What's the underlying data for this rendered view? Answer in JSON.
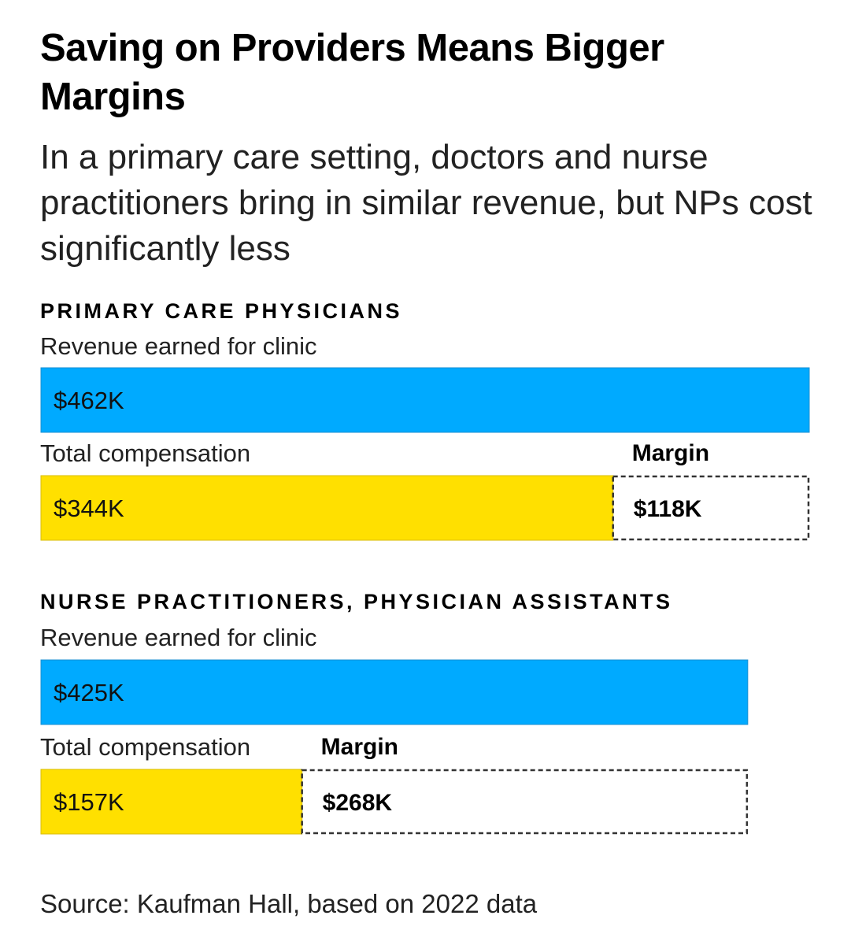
{
  "header": {
    "title": "Saving on Providers Means Bigger Margins",
    "subtitle": "In a primary care setting, doctors and nurse practitioners bring in similar revenue, but NPs cost significantly less"
  },
  "colors": {
    "revenue": "#00AAFF",
    "compensation": "#FFE000",
    "margin_border": "#333333"
  },
  "chart_data": {
    "type": "bar",
    "title": "Saving on Providers Means Bigger Margins",
    "subtitle": "In a primary care setting, doctors and nurse practitioners bring in similar revenue, but NPs cost significantly less",
    "units": "$K",
    "groups": [
      {
        "heading": "PRIMARY CARE PHYSICIANS",
        "revenue_label": "Revenue earned for clinic",
        "compensation_label": "Total compensation",
        "margin_label": "Margin",
        "revenue": 462,
        "compensation": 344,
        "margin": 118,
        "revenue_text": "$462K",
        "compensation_text": "$344K",
        "margin_text": "$118K"
      },
      {
        "heading": "NURSE PRACTITIONERS, PHYSICIAN ASSISTANTS",
        "revenue_label": "Revenue earned for clinic",
        "compensation_label": "Total compensation",
        "margin_label": "Margin",
        "revenue": 425,
        "compensation": 157,
        "margin": 268,
        "revenue_text": "$425K",
        "compensation_text": "$157K",
        "margin_text": "$268K"
      }
    ],
    "xlim": [
      0,
      462
    ],
    "source": "Source: Kaufman Hall, based on 2022 data"
  }
}
